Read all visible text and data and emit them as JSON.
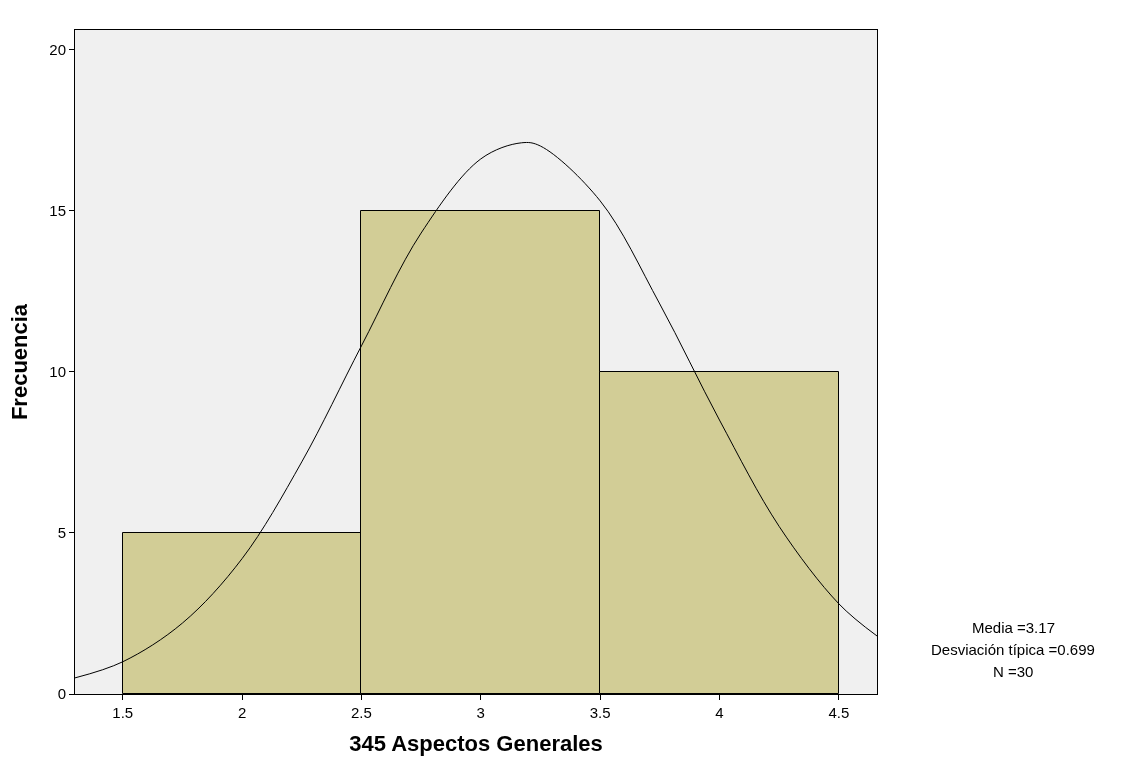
{
  "chart_data": {
    "type": "histogram",
    "xlabel": "345 Aspectos Generales",
    "ylabel": "Frecuencia",
    "bins": [
      1.5,
      2.5,
      3.5,
      4.5
    ],
    "values": [
      5,
      15,
      10
    ],
    "color": "#d2cd96",
    "series": [
      {
        "type": "line",
        "color": "#000000",
        "x": [
          1.3,
          1.5,
          1.75,
          2.0,
          2.25,
          2.5,
          2.75,
          3.0,
          3.17,
          3.25,
          3.5,
          3.75,
          4.0,
          4.25,
          4.5,
          4.66
        ],
        "values": [
          0.5,
          1.0,
          2.2,
          4.2,
          7.2,
          10.8,
          14.3,
          16.6,
          17.1,
          17.0,
          15.3,
          12.1,
          8.5,
          5.2,
          2.8,
          1.8
        ]
      }
    ],
    "xlim": [
      1.3,
      4.66
    ],
    "xticks": [
      1.5,
      2,
      2.5,
      3,
      3.5,
      4,
      4.5
    ],
    "ylim": [
      0,
      20.6
    ],
    "yticks": [
      0,
      5,
      10,
      15,
      20
    ],
    "annotations": [
      "Media =3.17",
      "Desviación típica =0.699",
      "N =30"
    ],
    "grid": false
  }
}
